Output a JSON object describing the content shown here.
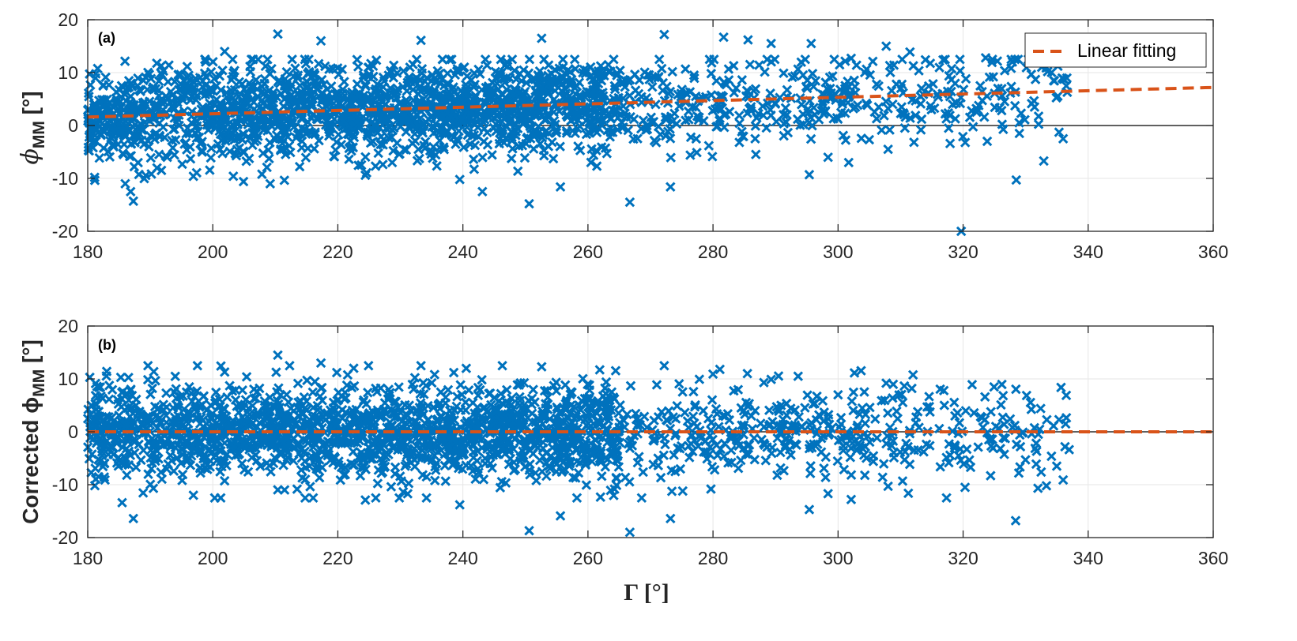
{
  "colors": {
    "marker": "#0072BD",
    "fit_line": "#D95319",
    "axis": "#262626",
    "grid": "#e6e6e6",
    "zero_line": "#000000"
  },
  "figure": {
    "xlabel": "Γ [°]",
    "xticks": [
      "180",
      "200",
      "220",
      "240",
      "260",
      "280",
      "300",
      "320",
      "340",
      "360"
    ],
    "yticks": [
      "20",
      "10",
      "0",
      "-10",
      "-20"
    ]
  },
  "panel_a": {
    "tag": "(a)",
    "ylabel_prefix": "ϕ",
    "ylabel_sub": "MM",
    "ylabel_suffix": " [°]",
    "legend_label": "Linear fitting"
  },
  "panel_b": {
    "tag": "(b)",
    "ylabel_prefix": "Corrected ϕ",
    "ylabel_sub": "MM",
    "ylabel_suffix": " [°]"
  },
  "chart_data": [
    {
      "type": "scatter",
      "title": "",
      "xlabel": "",
      "ylabel": "ϕMM [°]",
      "xlim": [
        180,
        360
      ],
      "ylim": [
        -20,
        20
      ],
      "xticks": [
        180,
        200,
        220,
        240,
        260,
        280,
        300,
        320,
        340,
        360
      ],
      "yticks": [
        -20,
        -10,
        0,
        10,
        20
      ],
      "grid": true,
      "legend": "top-right",
      "marker": "x",
      "reference_line_y": 0,
      "fit_line": {
        "name": "Linear fitting",
        "x": [
          180,
          360
        ],
        "y": [
          1.6,
          7.2
        ]
      },
      "cluster_model": {
        "x_range": [
          180,
          337
        ],
        "center_slope": 0.031,
        "center_at_180": 1.6,
        "spread": 4.5
      },
      "points": [
        [
          187.3,
          -14.3
        ],
        [
          196.9,
          -9.6
        ],
        [
          181.1,
          -9.8
        ],
        [
          186.0,
          -11.0
        ],
        [
          210.4,
          17.3
        ],
        [
          217.3,
          16.0
        ],
        [
          201.9,
          14.0
        ],
        [
          233.3,
          16.1
        ],
        [
          224.4,
          -9.4
        ],
        [
          239.5,
          -10.2
        ],
        [
          250.6,
          -14.8
        ],
        [
          255.6,
          -11.6
        ],
        [
          266.7,
          -14.5
        ],
        [
          273.2,
          -11.6
        ],
        [
          272.2,
          17.2
        ],
        [
          252.6,
          16.5
        ],
        [
          281.7,
          16.7
        ],
        [
          285.6,
          16.2
        ],
        [
          289.3,
          15.5
        ],
        [
          295.7,
          15.5
        ],
        [
          295.4,
          -9.3
        ],
        [
          301.7,
          -7.0
        ],
        [
          308.0,
          -4.5
        ],
        [
          311.5,
          13.9
        ],
        [
          307.7,
          15.0
        ],
        [
          319.7,
          -20.0
        ],
        [
          328.5,
          -10.3
        ],
        [
          329.0,
          -1.5
        ],
        [
          333.3,
          10.9
        ],
        [
          336.0,
          -2.5
        ],
        [
          336.5,
          7.5
        ],
        [
          323.6,
          12.8
        ],
        [
          298.4,
          -6.0
        ],
        [
          306.5,
          3.5
        ],
        [
          316.8,
          12.4
        ],
        [
          302.1,
          12.7
        ]
      ]
    },
    {
      "type": "scatter",
      "title": "",
      "xlabel": "Γ [°]",
      "ylabel": "Corrected ϕMM [°]",
      "xlim": [
        180,
        360
      ],
      "ylim": [
        -20,
        20
      ],
      "xticks": [
        180,
        200,
        220,
        240,
        260,
        280,
        300,
        320,
        340,
        360
      ],
      "yticks": [
        -20,
        -10,
        0,
        10,
        20
      ],
      "grid": true,
      "marker": "x",
      "reference_line_y": 0,
      "fit_line": {
        "name": "Linear fitting",
        "x": [
          180,
          360
        ],
        "y": [
          0,
          0
        ]
      },
      "cluster_model": {
        "x_range": [
          180,
          337
        ],
        "center_slope": 0.0,
        "center_at_180": 0.0,
        "spread": 4.5
      },
      "points": [
        [
          187.3,
          -16.4
        ],
        [
          196.9,
          -12.0
        ],
        [
          185.5,
          -13.4
        ],
        [
          210.4,
          14.5
        ],
        [
          217.3,
          13.0
        ],
        [
          201.9,
          11.3
        ],
        [
          233.3,
          12.5
        ],
        [
          224.4,
          -12.9
        ],
        [
          239.5,
          -13.8
        ],
        [
          250.6,
          -18.7
        ],
        [
          255.6,
          -15.9
        ],
        [
          266.7,
          -19.0
        ],
        [
          273.2,
          -16.4
        ],
        [
          272.2,
          12.5
        ],
        [
          252.6,
          12.3
        ],
        [
          281.1,
          11.8
        ],
        [
          285.5,
          11.0
        ],
        [
          289.3,
          9.9
        ],
        [
          295.4,
          -14.7
        ],
        [
          298.4,
          -11.7
        ],
        [
          302.1,
          -12.8
        ],
        [
          307.7,
          9.2
        ],
        [
          311.8,
          8.2
        ],
        [
          328.4,
          -16.8
        ],
        [
          328.9,
          -7.8
        ],
        [
          332.4,
          4.4
        ],
        [
          336.0,
          -9.1
        ],
        [
          336.4,
          1.5
        ],
        [
          323.5,
          6.6
        ],
        [
          308.0,
          -10.3
        ],
        [
          317.0,
          5.0
        ],
        [
          300.0,
          7.0
        ]
      ]
    }
  ]
}
